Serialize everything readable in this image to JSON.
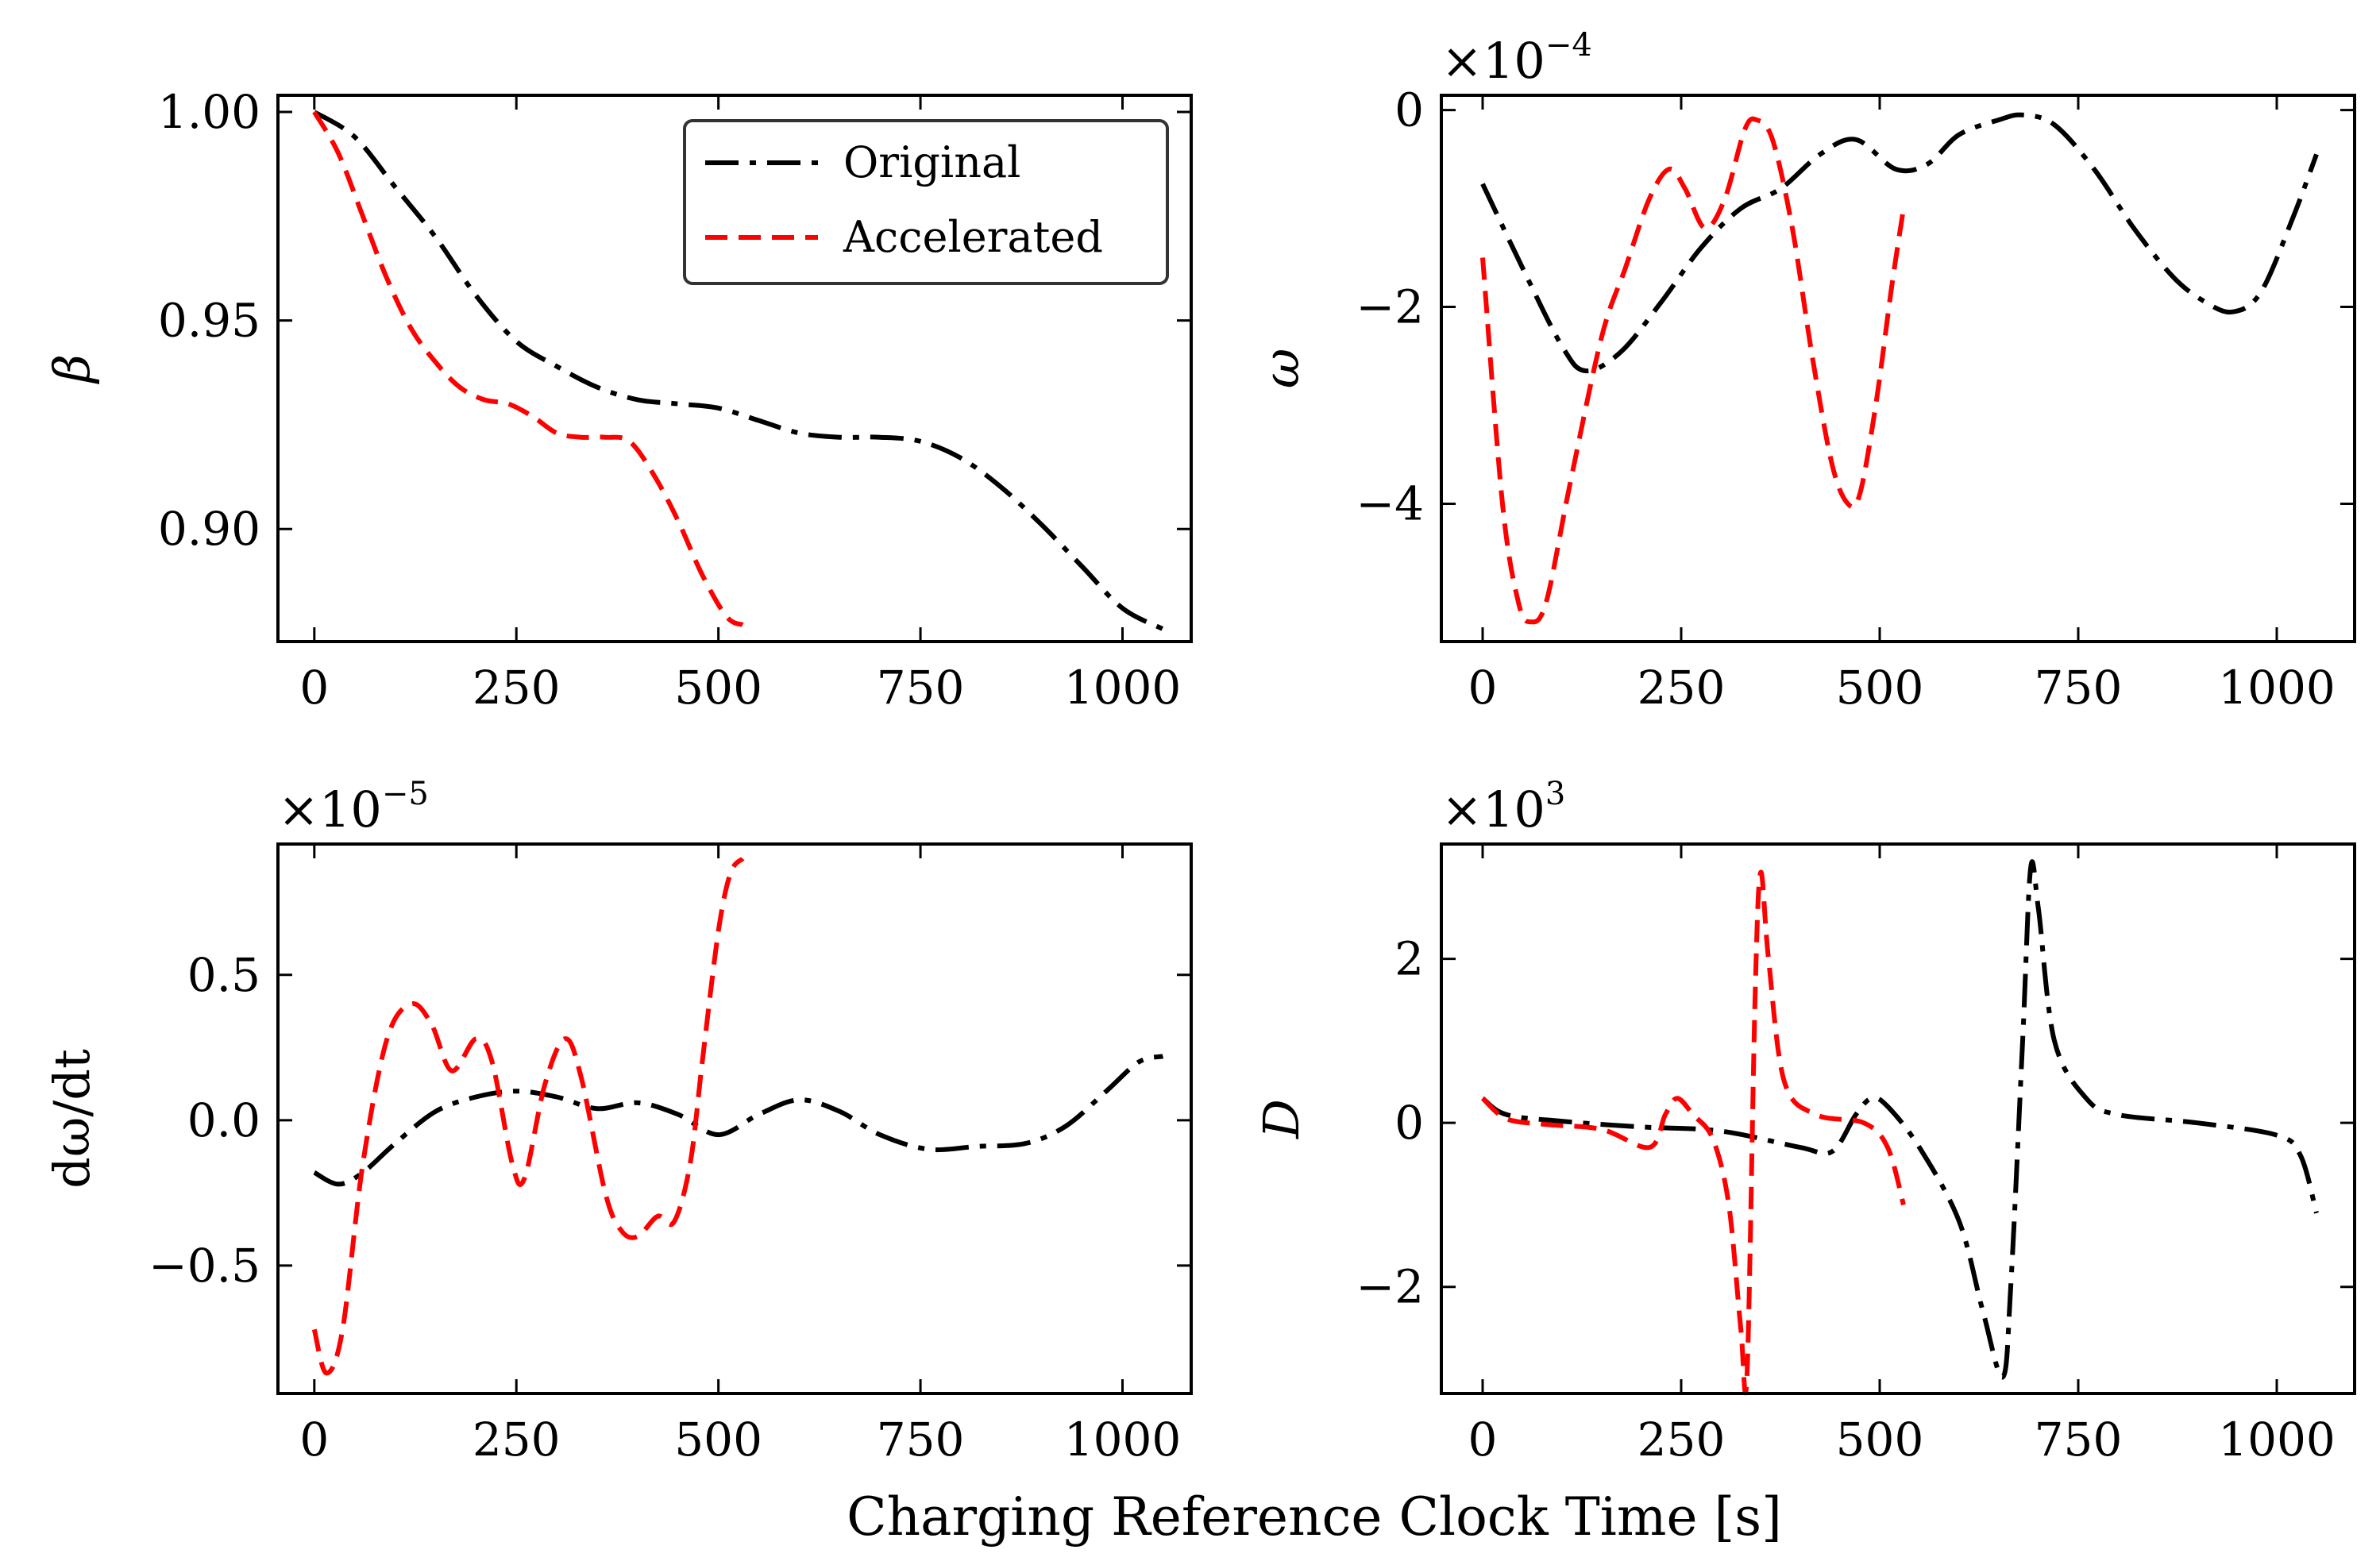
{
  "figure": {
    "xlabel": "Charging Reference Clock Time [s]",
    "legend": [
      {
        "name": "Original",
        "color": "#000000",
        "dash": "dashdot"
      },
      {
        "name": "Accelerated",
        "color": "#ff0000",
        "dash": "dashed"
      }
    ]
  },
  "chart_data": [
    {
      "id": "beta",
      "type": "line",
      "ylabel": "β",
      "ylabel_italic": true,
      "exponent_base": "",
      "exponent": "",
      "xlim": [
        -45,
        1085
      ],
      "ylim": [
        0.873,
        1.004
      ],
      "xticks": [
        0,
        250,
        500,
        750,
        1000
      ],
      "yticks": [
        0.9,
        0.95,
        1.0
      ],
      "ytick_labels": [
        "0.90",
        "0.95",
        "1.00"
      ],
      "legend": true,
      "series": [
        {
          "name": "Original",
          "color": "#000000",
          "dash": "dashdot",
          "x": [
            0,
            50,
            100,
            150,
            200,
            250,
            300,
            350,
            400,
            450,
            500,
            550,
            600,
            650,
            700,
            750,
            800,
            850,
            900,
            950,
            1000,
            1050
          ],
          "y": [
            1.0,
            0.994,
            0.982,
            0.97,
            0.956,
            0.945,
            0.939,
            0.934,
            0.931,
            0.93,
            0.929,
            0.926,
            0.923,
            0.922,
            0.922,
            0.921,
            0.917,
            0.91,
            0.901,
            0.891,
            0.881,
            0.876
          ]
        },
        {
          "name": "Accelerated",
          "color": "#ff0000",
          "dash": "dashed",
          "x": [
            0,
            30,
            60,
            90,
            120,
            150,
            180,
            210,
            240,
            270,
            300,
            330,
            360,
            390,
            420,
            450,
            480,
            510,
            530
          ],
          "y": [
            1.0,
            0.99,
            0.975,
            0.96,
            0.948,
            0.94,
            0.934,
            0.931,
            0.93,
            0.927,
            0.923,
            0.922,
            0.922,
            0.921,
            0.913,
            0.902,
            0.889,
            0.879,
            0.877
          ]
        }
      ]
    },
    {
      "id": "omega",
      "type": "line",
      "ylabel": "ω",
      "ylabel_italic": true,
      "exponent_base": "×10",
      "exponent": "−4",
      "xlim": [
        -52,
        1098
      ],
      "ylim": [
        -5.4,
        0.15
      ],
      "xticks": [
        0,
        250,
        500,
        750,
        1000
      ],
      "yticks": [
        -4,
        -2,
        0
      ],
      "ytick_labels": [
        "−4",
        "−2",
        "0"
      ],
      "legend": false,
      "series": [
        {
          "name": "Original",
          "color": "#000000",
          "dash": "dashdot",
          "x": [
            0,
            50,
            100,
            130,
            175,
            225,
            275,
            325,
            375,
            425,
            470,
            520,
            560,
            600,
            650,
            680,
            720,
            770,
            820,
            870,
            910,
            945,
            980,
            1020,
            1050
          ],
          "y": [
            -0.75,
            -1.6,
            -2.4,
            -2.65,
            -2.45,
            -1.95,
            -1.4,
            -1.0,
            -0.8,
            -0.45,
            -0.3,
            -0.6,
            -0.55,
            -0.25,
            -0.1,
            -0.05,
            -0.15,
            -0.6,
            -1.2,
            -1.7,
            -1.95,
            -2.05,
            -1.85,
            -1.1,
            -0.45
          ]
        },
        {
          "name": "Accelerated",
          "color": "#ff0000",
          "dash": "dashed",
          "x": [
            0,
            25,
            45,
            60,
            80,
            110,
            150,
            180,
            210,
            235,
            255,
            280,
            305,
            330,
            345,
            365,
            390,
            415,
            440,
            460,
            475,
            495,
            515,
            530
          ],
          "y": [
            -1.5,
            -4.0,
            -5.0,
            -5.2,
            -5.0,
            -3.8,
            -2.3,
            -1.6,
            -0.9,
            -0.6,
            -0.8,
            -1.2,
            -0.9,
            -0.2,
            -0.1,
            -0.3,
            -1.2,
            -2.5,
            -3.6,
            -4.0,
            -3.9,
            -3.0,
            -1.8,
            -1.0
          ]
        }
      ]
    },
    {
      "id": "domega-dt",
      "type": "line",
      "ylabel": "dω/dt",
      "ylabel_italic": false,
      "exponent_base": "×10",
      "exponent": "−5",
      "xlim": [
        -45,
        1085
      ],
      "ylim": [
        -0.94,
        0.95
      ],
      "xticks": [
        0,
        250,
        500,
        750,
        1000
      ],
      "yticks": [
        -0.5,
        0.0,
        0.5
      ],
      "ytick_labels": [
        "−0.5",
        "0.0",
        "0.5"
      ],
      "legend": false,
      "series": [
        {
          "name": "Original",
          "color": "#000000",
          "dash": "dashdot",
          "x": [
            0,
            30,
            60,
            100,
            150,
            200,
            250,
            300,
            350,
            400,
            450,
            500,
            550,
            600,
            650,
            700,
            760,
            820,
            880,
            930,
            980,
            1020,
            1050
          ],
          "y": [
            -0.18,
            -0.22,
            -0.18,
            -0.08,
            0.03,
            0.08,
            0.1,
            0.08,
            0.04,
            0.06,
            0.02,
            -0.05,
            0.02,
            0.07,
            0.03,
            -0.05,
            -0.1,
            -0.09,
            -0.08,
            -0.02,
            0.1,
            0.2,
            0.22
          ]
        },
        {
          "name": "Accelerated",
          "color": "#ff0000",
          "dash": "dashed",
          "x": [
            0,
            15,
            35,
            60,
            90,
            120,
            145,
            170,
            200,
            220,
            245,
            260,
            285,
            310,
            330,
            360,
            380,
            400,
            425,
            445,
            465,
            480,
            500,
            515,
            530
          ],
          "y": [
            -0.72,
            -0.87,
            -0.72,
            -0.15,
            0.28,
            0.4,
            0.33,
            0.17,
            0.28,
            0.2,
            -0.15,
            -0.2,
            0.12,
            0.28,
            0.15,
            -0.25,
            -0.38,
            -0.4,
            -0.33,
            -0.35,
            -0.15,
            0.2,
            0.65,
            0.85,
            0.9
          ]
        }
      ]
    },
    {
      "id": "d",
      "type": "line",
      "ylabel": "D",
      "ylabel_italic": true,
      "exponent_base": "×10",
      "exponent": "3",
      "xlim": [
        -52,
        1098
      ],
      "ylim": [
        -3.3,
        3.4
      ],
      "xticks": [
        0,
        250,
        500,
        750,
        1000
      ],
      "yticks": [
        -2,
        0,
        2
      ],
      "ytick_labels": [
        "−2",
        "0",
        "2"
      ],
      "legend": false,
      "series": [
        {
          "name": "Original",
          "color": "#000000",
          "dash": "dashdot",
          "x": [
            0,
            30,
            100,
            200,
            300,
            400,
            440,
            470,
            490,
            510,
            550,
            600,
            630,
            655,
            665,
            680,
            690,
            700,
            720,
            760,
            800,
            900,
            1000,
            1030,
            1050
          ],
          "y": [
            0.3,
            0.1,
            0.02,
            -0.05,
            -0.1,
            -0.3,
            -0.35,
            0.1,
            0.3,
            0.2,
            -0.3,
            -1.2,
            -2.3,
            -3.1,
            -2.0,
            1.0,
            3.1,
            2.6,
            1.0,
            0.3,
            0.1,
            0.0,
            -0.15,
            -0.4,
            -1.1
          ]
        },
        {
          "name": "Accelerated",
          "color": "#ff0000",
          "dash": "dashed",
          "x": [
            0,
            30,
            80,
            150,
            210,
            230,
            245,
            265,
            290,
            310,
            325,
            333,
            343,
            350,
            360,
            380,
            420,
            480,
            510,
            530
          ],
          "y": [
            0.3,
            0.05,
            -0.02,
            -0.08,
            -0.3,
            0.1,
            0.3,
            0.1,
            -0.2,
            -1.0,
            -2.5,
            -3.05,
            1.5,
            3.05,
            2.0,
            0.5,
            0.1,
            0.0,
            -0.3,
            -1.0
          ]
        }
      ]
    }
  ]
}
